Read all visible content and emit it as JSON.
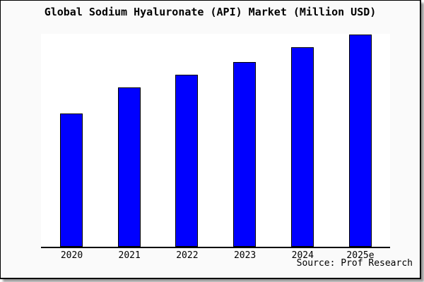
{
  "chart_data": {
    "type": "bar",
    "title": "Global Sodium Hyaluronate (API) Market (Million USD)",
    "categories": [
      "2020",
      "2021",
      "2022",
      "2023",
      "2024",
      "2025e"
    ],
    "values": [
      63,
      75,
      81,
      87,
      94,
      100
    ],
    "values_note": "y-axis has no tick labels; values are relative bar heights with 2025e = 100",
    "xlabel": "",
    "ylabel": "",
    "ylim": [
      0,
      100
    ],
    "grid": false,
    "legend": false,
    "bar_color": "#0000ff",
    "bar_outline_color": "#000000",
    "axis_color": "#000000",
    "frame_background": "#fafafa",
    "plot_background": "#ffffff",
    "source": "Source: Prof Research"
  }
}
